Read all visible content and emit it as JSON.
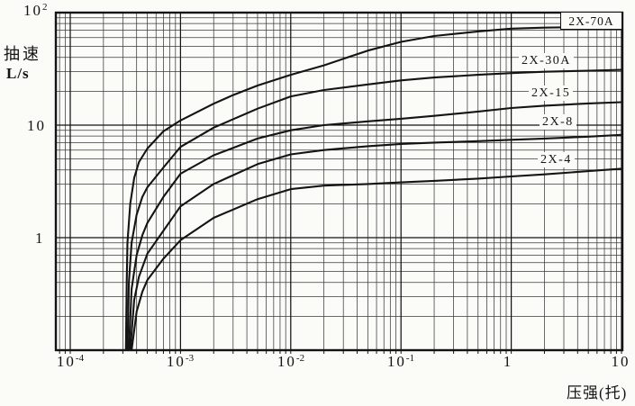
{
  "chart": {
    "y_axis_title_line1": "抽速",
    "y_axis_title_line2": "L/s",
    "x_axis_title": "压强(托)",
    "y_ticks": [
      {
        "base": "10",
        "sup": "2",
        "value": 100
      },
      {
        "base": "10",
        "sup": "",
        "value": 10
      },
      {
        "base": "1",
        "sup": "",
        "value": 1
      }
    ],
    "x_ticks": [
      {
        "base": "10",
        "sup": "-4",
        "value": 0.0001
      },
      {
        "base": "10",
        "sup": "-3",
        "value": 0.001
      },
      {
        "base": "10",
        "sup": "-2",
        "value": 0.01
      },
      {
        "base": "10",
        "sup": "-1",
        "value": 0.1
      },
      {
        "base": "1",
        "sup": "",
        "value": 1
      },
      {
        "base": "10",
        "sup": "",
        "value": 10
      }
    ],
    "curve_labels": {
      "boxed_70a": "2X-70A",
      "l30": "2X-30A",
      "l15": "2X-15",
      "l8": "2X-8",
      "l4": "2X-4"
    },
    "colors": {
      "ink": "#141414",
      "grid_minor": "#3a3a3a",
      "paper": "#fbfbf8"
    }
  },
  "chart_data": {
    "type": "line",
    "title": "",
    "xlabel": "压强(托)",
    "ylabel": "抽速 L/s",
    "x_scale": "log",
    "y_scale": "log",
    "xlim": [
      7.5e-05,
      10
    ],
    "ylim": [
      0.1,
      100
    ],
    "grid": "log-log, major and minor (2-9) lines both axes",
    "legend_position": "labels on curves, right side",
    "series": [
      {
        "name": "2X-70A",
        "points": [
          [
            0.00032,
            0.1
          ],
          [
            0.000325,
            0.4
          ],
          [
            0.00033,
            0.9
          ],
          [
            0.00035,
            2.0
          ],
          [
            0.00038,
            3.4
          ],
          [
            0.00042,
            4.7
          ],
          [
            0.0005,
            6.2
          ],
          [
            0.0007,
            8.8
          ],
          [
            0.001,
            11
          ],
          [
            0.002,
            15.5
          ],
          [
            0.003,
            18.5
          ],
          [
            0.005,
            22.5
          ],
          [
            0.01,
            28
          ],
          [
            0.02,
            34
          ],
          [
            0.05,
            46
          ],
          [
            0.1,
            55
          ],
          [
            0.2,
            62
          ],
          [
            0.5,
            68
          ],
          [
            1,
            72
          ],
          [
            2,
            73.5
          ],
          [
            5,
            74.5
          ],
          [
            10,
            75
          ]
        ]
      },
      {
        "name": "2X-30A",
        "points": [
          [
            0.00033,
            0.1
          ],
          [
            0.00034,
            0.4
          ],
          [
            0.00036,
            0.9
          ],
          [
            0.0004,
            1.6
          ],
          [
            0.00045,
            2.3
          ],
          [
            0.0005,
            2.8
          ],
          [
            0.0007,
            4.2
          ],
          [
            0.001,
            6.4
          ],
          [
            0.002,
            9.5
          ],
          [
            0.005,
            14
          ],
          [
            0.01,
            18
          ],
          [
            0.02,
            20.5
          ],
          [
            0.05,
            23
          ],
          [
            0.1,
            25
          ],
          [
            0.2,
            26.5
          ],
          [
            0.5,
            28
          ],
          [
            1,
            29
          ],
          [
            2,
            29.8
          ],
          [
            5,
            30.5
          ],
          [
            10,
            31
          ]
        ]
      },
      {
        "name": "2X-15",
        "points": [
          [
            0.00034,
            0.1
          ],
          [
            0.00036,
            0.35
          ],
          [
            0.0004,
            0.7
          ],
          [
            0.00045,
            1.05
          ],
          [
            0.0005,
            1.35
          ],
          [
            0.0007,
            2.3
          ],
          [
            0.001,
            3.7
          ],
          [
            0.002,
            5.4
          ],
          [
            0.005,
            7.6
          ],
          [
            0.01,
            9
          ],
          [
            0.02,
            10
          ],
          [
            0.05,
            10.8
          ],
          [
            0.1,
            11.4
          ],
          [
            0.2,
            12.1
          ],
          [
            0.5,
            13.2
          ],
          [
            1,
            14.2
          ],
          [
            2,
            14.9
          ],
          [
            5,
            15.6
          ],
          [
            10,
            16
          ]
        ]
      },
      {
        "name": "2X-8",
        "points": [
          [
            0.00035,
            0.1
          ],
          [
            0.00038,
            0.28
          ],
          [
            0.00042,
            0.45
          ],
          [
            0.0005,
            0.72
          ],
          [
            0.0007,
            1.15
          ],
          [
            0.001,
            1.9
          ],
          [
            0.002,
            3.0
          ],
          [
            0.005,
            4.5
          ],
          [
            0.01,
            5.5
          ],
          [
            0.02,
            6.0
          ],
          [
            0.05,
            6.5
          ],
          [
            0.1,
            6.8
          ],
          [
            0.2,
            7.0
          ],
          [
            0.5,
            7.2
          ],
          [
            1,
            7.4
          ],
          [
            2,
            7.6
          ],
          [
            5,
            7.9
          ],
          [
            10,
            8.2
          ]
        ]
      },
      {
        "name": "2X-4",
        "points": [
          [
            0.00036,
            0.1
          ],
          [
            0.0004,
            0.22
          ],
          [
            0.00045,
            0.33
          ],
          [
            0.0005,
            0.42
          ],
          [
            0.0007,
            0.65
          ],
          [
            0.001,
            0.95
          ],
          [
            0.002,
            1.5
          ],
          [
            0.005,
            2.2
          ],
          [
            0.01,
            2.7
          ],
          [
            0.02,
            2.9
          ],
          [
            0.05,
            3.0
          ],
          [
            0.1,
            3.1
          ],
          [
            0.2,
            3.2
          ],
          [
            0.5,
            3.35
          ],
          [
            1,
            3.5
          ],
          [
            2,
            3.65
          ],
          [
            5,
            3.9
          ],
          [
            10,
            4.1
          ]
        ]
      }
    ]
  }
}
